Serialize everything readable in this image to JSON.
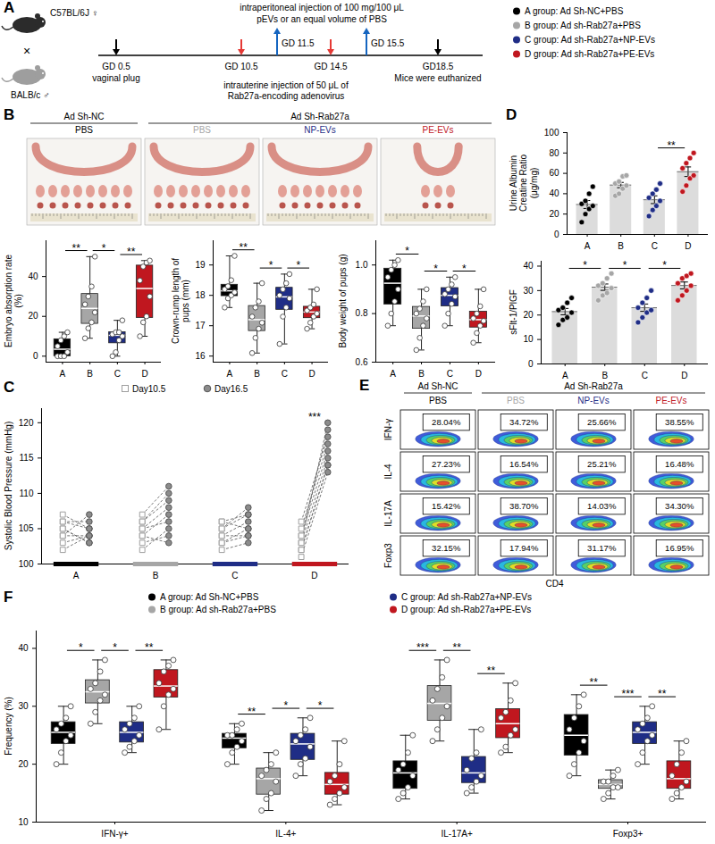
{
  "panel_A": {
    "label": "A",
    "parents": [
      "C57BL/6J ♀",
      "BALB/c ♂"
    ],
    "cross": "×",
    "injection_top": [
      "intraperitoneal injection of 100 mg/100 μL",
      "pEVs or an equal volume of PBS"
    ],
    "injection_bottom": [
      "intrauterine injection of 50 μL of",
      "Rab27a-encoding adenovirus"
    ],
    "events": [
      {
        "label": "GD 0.5",
        "note": "vaginal plug",
        "color": "#000000"
      },
      {
        "label": "GD 10.5",
        "color": "#e53935"
      },
      {
        "label": "GD 11.5",
        "color": "#1565c0"
      },
      {
        "label": "GD 14.5",
        "color": "#e53935"
      },
      {
        "label": "GD 15.5",
        "color": "#1565c0"
      },
      {
        "label": "GD18.5",
        "note": "Mice were euthanized",
        "color": "#000000"
      }
    ],
    "groups": [
      {
        "label": "A group: Ad Sh-NC+PBS",
        "color": "#000000"
      },
      {
        "label": "B group: Ad sh-Rab27a+PBS",
        "color": "#a6a6a6"
      },
      {
        "label": "C group: Ad sh-Rab27a+NP-EVs",
        "color": "#1f2d86"
      },
      {
        "label": "D group: Ad sh-Rab27a+PE-EVs",
        "color": "#c0171f"
      }
    ]
  },
  "panel_B": {
    "label": "B",
    "headers": [
      {
        "label": "Ad Sh-NC",
        "columns": 1
      },
      {
        "label": "Ad Sh-Rab27a",
        "columns": 3
      }
    ],
    "columns": [
      {
        "label": "PBS",
        "color": "#000000"
      },
      {
        "label": "PBS",
        "color": "#a6a6a6"
      },
      {
        "label": "NP-EVs",
        "color": "#1f2d86"
      },
      {
        "label": "PE-EVs",
        "color": "#c0171f"
      }
    ]
  },
  "chart_data": [
    {
      "type": "box",
      "ylabel": "Embryo absorption rate (%)",
      "categories": [
        "A",
        "B",
        "C",
        "D"
      ],
      "colors": [
        "#000000",
        "#a6a6a6",
        "#1f2d86",
        "#c0171f"
      ],
      "values": [
        [
          0,
          0,
          0,
          2,
          5,
          8,
          10,
          12
        ],
        [
          9,
          14,
          17,
          22,
          26,
          30,
          35,
          50
        ],
        [
          0,
          2,
          8,
          10,
          11,
          12,
          12,
          18
        ],
        [
          10,
          17,
          20,
          30,
          38,
          45,
          47,
          48
        ]
      ],
      "ylim": [
        -3,
        58
      ],
      "yticks": [
        0,
        20,
        40
      ],
      "significance": [
        {
          "from": "A",
          "to": "B",
          "label": "**"
        },
        {
          "from": "B",
          "to": "C",
          "label": "*"
        },
        {
          "from": "C",
          "to": "D",
          "label": "**"
        }
      ]
    },
    {
      "type": "box",
      "ylabel": "Crown-rump length of pups (mm)",
      "categories": [
        "A",
        "B",
        "C",
        "D"
      ],
      "colors": [
        "#000000",
        "#a6a6a6",
        "#1f2d86",
        "#c0171f"
      ],
      "values": [
        [
          17.6,
          17.9,
          18.0,
          18.1,
          18.2,
          18.3,
          18.5,
          19.3
        ],
        [
          16.1,
          16.6,
          16.9,
          17.1,
          17.3,
          17.6,
          17.8,
          18.4
        ],
        [
          16.4,
          17.3,
          17.6,
          17.9,
          18.0,
          18.2,
          18.4,
          18.7
        ],
        [
          16.9,
          17.1,
          17.3,
          17.4,
          17.5,
          17.6,
          17.7,
          18.2
        ]
      ],
      "ylim": [
        15.8,
        19.8
      ],
      "yticks": [
        16,
        17,
        18,
        19
      ],
      "significance": [
        {
          "from": "A",
          "to": "B",
          "label": "**"
        },
        {
          "from": "B",
          "to": "C",
          "label": "*"
        },
        {
          "from": "C",
          "to": "D",
          "label": "*"
        }
      ]
    },
    {
      "type": "box",
      "ylabel": "Body weight of pups (g)",
      "categories": [
        "A",
        "B",
        "C",
        "D"
      ],
      "colors": [
        "#000000",
        "#a6a6a6",
        "#1f2d86",
        "#c0171f"
      ],
      "values": [
        [
          0.75,
          0.8,
          0.85,
          0.9,
          0.95,
          0.98,
          1.0,
          1.02
        ],
        [
          0.65,
          0.7,
          0.75,
          0.78,
          0.8,
          0.82,
          0.85,
          0.9
        ],
        [
          0.75,
          0.8,
          0.84,
          0.87,
          0.88,
          0.9,
          0.92,
          0.95
        ],
        [
          0.68,
          0.72,
          0.75,
          0.77,
          0.78,
          0.8,
          0.83,
          0.9
        ]
      ],
      "ylim": [
        0.6,
        1.1
      ],
      "yticks": [
        0.6,
        0.8,
        {
          "value": 1,
          "label": "1.0"
        }
      ],
      "significance": [
        {
          "from": "A",
          "to": "B",
          "label": "*"
        },
        {
          "from": "B",
          "to": "C",
          "label": "*"
        },
        {
          "from": "C",
          "to": "D",
          "label": "*"
        }
      ]
    },
    {
      "panel": "D",
      "type": "bar",
      "ylabel": "Urine Albumin Creatine Ratio (μg/mg)",
      "categories": [
        "A",
        "B",
        "C",
        "D"
      ],
      "colors": [
        "#000000",
        "#a6a6a6",
        "#1f2d86",
        "#c0171f"
      ],
      "values": [
        29.4,
        48.5,
        34.1,
        61.6
      ],
      "errors": [
        3.9,
        2.6,
        3.8,
        4.7
      ],
      "points": [
        [
          12,
          20,
          25,
          28,
          30,
          33,
          40,
          47
        ],
        [
          38,
          40,
          45,
          48,
          50,
          52,
          57,
          58
        ],
        [
          18,
          24,
          28,
          33,
          36,
          40,
          44,
          50
        ],
        [
          42,
          48,
          55,
          58,
          65,
          70,
          75,
          80
        ]
      ],
      "ylim": [
        0,
        100
      ],
      "yticks": [
        0,
        20,
        40,
        60,
        80,
        100
      ],
      "significance": [
        {
          "from": "C",
          "to": "D",
          "label": "**"
        }
      ]
    },
    {
      "type": "bar",
      "ylabel": "sFlt-1/PlGF",
      "categories": [
        "A",
        "B",
        "C",
        "D"
      ],
      "colors": [
        "#000000",
        "#a6a6a6",
        "#1f2d86",
        "#c0171f"
      ],
      "values": [
        21.4,
        31.4,
        23.0,
        32.1
      ],
      "errors": [
        1.3,
        1.3,
        1.5,
        1.4
      ],
      "points": [
        [
          16,
          18,
          19,
          21,
          22,
          23,
          25,
          27
        ],
        [
          26,
          28,
          29,
          31,
          32,
          33,
          35,
          37
        ],
        [
          17,
          19,
          21,
          22,
          23,
          25,
          27,
          30
        ],
        [
          26,
          28,
          30,
          32,
          33,
          35,
          36,
          37
        ]
      ],
      "ylim": [
        0,
        42
      ],
      "yticks": [
        0,
        10,
        20,
        30,
        40
      ],
      "significance": [
        {
          "from": "A",
          "to": "B",
          "label": "*"
        },
        {
          "from": "B",
          "to": "C",
          "label": "*"
        },
        {
          "from": "C",
          "to": "D",
          "label": "*"
        }
      ]
    },
    {
      "panel": "C",
      "type": "paired_dot",
      "ylabel": "Systolic Blood Pressure (mmHg)",
      "categories": [
        "A",
        "B",
        "C",
        "D"
      ],
      "colors": [
        "#000000",
        "#a6a6a6",
        "#1f2d86",
        "#c0171f"
      ],
      "series": [
        {
          "name": "Day10.5",
          "color": "#9e9e9e",
          "marker": "square",
          "values": [
            [
              104,
              105,
              106,
              103,
              107,
              105,
              104,
              106,
              102
            ],
            [
              103,
              105,
              106,
              104,
              107,
              105,
              102,
              104,
              106
            ],
            [
              103,
              104,
              105,
              106,
              102,
              105,
              104,
              103,
              106
            ],
            [
              101,
              102,
              103,
              104,
              105,
              106,
              104,
              103,
              102
            ]
          ]
        },
        {
          "name": "Day16.5",
          "color": "#8c8c8c",
          "marker": "circle",
          "values": [
            [
              104,
              103,
              106,
              104,
              105,
              103,
              107,
              105,
              104
            ],
            [
              104,
              108,
              110,
              103,
              111,
              106,
              105,
              107,
              109
            ],
            [
              104,
              106,
              107,
              105,
              103,
              108,
              104,
              105,
              107
            ],
            [
              113,
              114,
              115,
              116,
              117,
              118,
              119,
              120,
              114
            ]
          ]
        }
      ],
      "line_style": "dashed",
      "legend": "top",
      "ylim": [
        100,
        122
      ],
      "yticks": [
        100,
        105,
        110,
        115,
        120
      ],
      "significance": [
        {
          "category": "D",
          "label": "***"
        }
      ]
    },
    {
      "panel": "F",
      "type": "box",
      "ylabel": "Frequency (%)",
      "categories": [
        "IFN-γ+",
        "IL-4+",
        "IL-17A+",
        "Foxp3+"
      ],
      "series": [
        {
          "name": "A group: Ad Sh-NC+PBS",
          "color": "#000000",
          "values": [
            [
              20,
              22,
              24,
              25,
              26,
              27,
              28,
              30
            ],
            [
              20,
              22,
              23,
              24,
              25,
              25,
              26,
              27
            ],
            [
              14,
              15,
              16,
              18,
              19,
              20,
              22,
              25
            ],
            [
              18,
              20,
              22,
              24,
              26,
              28,
              30,
              32
            ]
          ]
        },
        {
          "name": "B group: Ad sh-Rab27a+PBS",
          "color": "#a6a6a6",
          "values": [
            [
              27,
              29,
              31,
              32,
              33,
              34,
              36,
              38
            ],
            [
              12,
              14,
              15,
              17,
              18,
              19,
              20,
              22
            ],
            [
              24,
              26,
              28,
              30,
              31,
              33,
              35,
              38
            ],
            [
              14,
              15,
              16,
              16,
              17,
              17,
              18,
              19
            ]
          ]
        },
        {
          "name": "C group: Ad sh-Rab27a+NP-EVs",
          "color": "#1f2d86",
          "values": [
            [
              22,
              23,
              24,
              25,
              26,
              27,
              28,
              30
            ],
            [
              18,
              20,
              21,
              23,
              24,
              25,
              26,
              28
            ],
            [
              15,
              16,
              17,
              18,
              19,
              21,
              22,
              26
            ],
            [
              20,
              22,
              24,
              25,
              26,
              27,
              28,
              30
            ]
          ]
        },
        {
          "name": "D group: Ad sh-Rab27a+PE-EVs",
          "color": "#c0171f",
          "values": [
            [
              26,
              30,
              32,
              33,
              34,
              36,
              37,
              38
            ],
            [
              13,
              14,
              15,
              16,
              17,
              18,
              20,
              24
            ],
            [
              22,
              23,
              25,
              26,
              28,
              29,
              31,
              34
            ],
            [
              14,
              15,
              16,
              17,
              18,
              20,
              22,
              24
            ]
          ]
        }
      ],
      "legend": "top",
      "ylim": [
        10,
        43
      ],
      "yticks": [
        10,
        20,
        30,
        40
      ],
      "significance": [
        {
          "category": "IFN-γ+",
          "from": "A group: Ad Sh-NC+PBS",
          "to": "B group: Ad sh-Rab27a+PBS",
          "label": "*"
        },
        {
          "category": "IFN-γ+",
          "from": "B group: Ad sh-Rab27a+PBS",
          "to": "C group: Ad sh-Rab27a+NP-EVs",
          "label": "*"
        },
        {
          "category": "IFN-γ+",
          "from": "C group: Ad sh-Rab27a+NP-EVs",
          "to": "D group: Ad sh-Rab27a+PE-EVs",
          "label": "**"
        },
        {
          "category": "IL-4+",
          "from": "A group: Ad Sh-NC+PBS",
          "to": "B group: Ad sh-Rab27a+PBS",
          "label": "**"
        },
        {
          "category": "IL-4+",
          "from": "B group: Ad sh-Rab27a+PBS",
          "to": "C group: Ad sh-Rab27a+NP-EVs",
          "label": "*"
        },
        {
          "category": "IL-4+",
          "from": "C group: Ad sh-Rab27a+NP-EVs",
          "to": "D group: Ad sh-Rab27a+PE-EVs",
          "label": "*"
        },
        {
          "category": "IL-17A+",
          "from": "A group: Ad Sh-NC+PBS",
          "to": "B group: Ad sh-Rab27a+PBS",
          "label": "***"
        },
        {
          "category": "IL-17A+",
          "from": "B group: Ad sh-Rab27a+PBS",
          "to": "C group: Ad sh-Rab27a+NP-EVs",
          "label": "**"
        },
        {
          "category": "IL-17A+",
          "from": "C group: Ad sh-Rab27a+NP-EVs",
          "to": "D group: Ad sh-Rab27a+PE-EVs",
          "label": "**"
        },
        {
          "category": "Foxp3+",
          "from": "A group: Ad Sh-NC+PBS",
          "to": "B group: Ad sh-Rab27a+PBS",
          "label": "**"
        },
        {
          "category": "Foxp3+",
          "from": "B group: Ad sh-Rab27a+PBS",
          "to": "C group: Ad sh-Rab27a+NP-EVs",
          "label": "***"
        },
        {
          "category": "Foxp3+",
          "from": "C group: Ad sh-Rab27a+NP-EVs",
          "to": "D group: Ad sh-Rab27a+PE-EVs",
          "label": "**"
        }
      ]
    }
  ],
  "panel_E": {
    "label": "E",
    "headers": [
      {
        "label": "Ad Sh-NC",
        "columns": 1
      },
      {
        "label": "Ad Sh-Rab27a",
        "columns": 3
      }
    ],
    "columns": [
      {
        "label": "PBS",
        "color": "#000000"
      },
      {
        "label": "PBS",
        "color": "#a6a6a6"
      },
      {
        "label": "NP-EVs",
        "color": "#1f2d86"
      },
      {
        "label": "PE-EVs",
        "color": "#c0171f"
      }
    ],
    "rows": [
      {
        "label": "IFN-γ",
        "values": [
          "28.04%",
          "34.72%",
          "25.66%",
          "38.55%"
        ]
      },
      {
        "label": "IL-4",
        "values": [
          "27.23%",
          "16.54%",
          "25.21%",
          "16.48%"
        ]
      },
      {
        "label": "IL-17A",
        "values": [
          "15.42%",
          "38.70%",
          "14.03%",
          "34.30%"
        ]
      },
      {
        "label": "Foxp3",
        "values": [
          "32.15%",
          "17.94%",
          "31.17%",
          "16.95%"
        ]
      }
    ],
    "xlabel": "CD4"
  }
}
